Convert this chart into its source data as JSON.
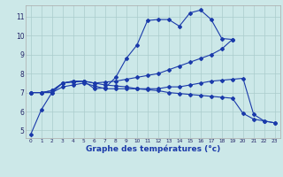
{
  "title": "Graphe des températures (°c)",
  "bg_color": "#cce8e8",
  "grid_color": "#aacccc",
  "line_color": "#1a3aaa",
  "xlim": [
    -0.5,
    23.5
  ],
  "ylim": [
    4.6,
    11.6
  ],
  "xticks": [
    0,
    1,
    2,
    3,
    4,
    5,
    6,
    7,
    8,
    9,
    10,
    11,
    12,
    13,
    14,
    15,
    16,
    17,
    18,
    19,
    20,
    21,
    22,
    23
  ],
  "yticks": [
    5,
    6,
    7,
    8,
    9,
    10,
    11
  ],
  "series1_x": [
    0,
    1,
    2,
    3,
    4,
    5,
    6,
    7,
    8,
    9,
    10,
    11,
    12,
    13,
    14,
    15,
    16,
    17,
    18,
    19
  ],
  "series1_y": [
    4.8,
    6.1,
    7.0,
    7.5,
    7.55,
    7.6,
    7.2,
    7.25,
    7.8,
    8.8,
    9.5,
    10.8,
    10.85,
    10.85,
    10.5,
    11.2,
    11.35,
    10.85,
    9.85,
    9.8
  ],
  "series2_x": [
    0,
    1,
    2,
    3,
    4,
    5,
    6,
    7,
    8,
    9,
    10,
    11,
    12,
    13,
    14,
    15,
    16,
    17,
    18,
    19
  ],
  "series2_y": [
    7.0,
    7.0,
    7.1,
    7.5,
    7.6,
    7.6,
    7.5,
    7.55,
    7.6,
    7.7,
    7.8,
    7.9,
    8.0,
    8.2,
    8.4,
    8.6,
    8.8,
    9.0,
    9.3,
    9.8
  ],
  "series3_x": [
    0,
    1,
    2,
    3,
    4,
    5,
    6,
    7,
    8,
    9,
    10,
    11,
    12,
    13,
    14,
    15,
    16,
    17,
    18,
    19,
    20,
    21,
    22,
    23
  ],
  "series3_y": [
    7.0,
    7.0,
    7.1,
    7.5,
    7.6,
    7.6,
    7.5,
    7.4,
    7.35,
    7.3,
    7.2,
    7.15,
    7.1,
    7.0,
    6.95,
    6.9,
    6.85,
    6.8,
    6.75,
    6.7,
    5.9,
    5.6,
    5.5,
    5.4
  ],
  "series4_x": [
    0,
    1,
    2,
    3,
    4,
    5,
    6,
    7,
    8,
    9,
    10,
    11,
    12,
    13,
    14,
    15,
    16,
    17,
    18,
    19,
    20,
    21,
    22,
    23
  ],
  "series4_y": [
    7.0,
    7.0,
    7.0,
    7.3,
    7.4,
    7.5,
    7.35,
    7.2,
    7.2,
    7.2,
    7.2,
    7.2,
    7.2,
    7.3,
    7.3,
    7.4,
    7.5,
    7.6,
    7.65,
    7.7,
    7.75,
    5.85,
    5.5,
    5.4
  ]
}
